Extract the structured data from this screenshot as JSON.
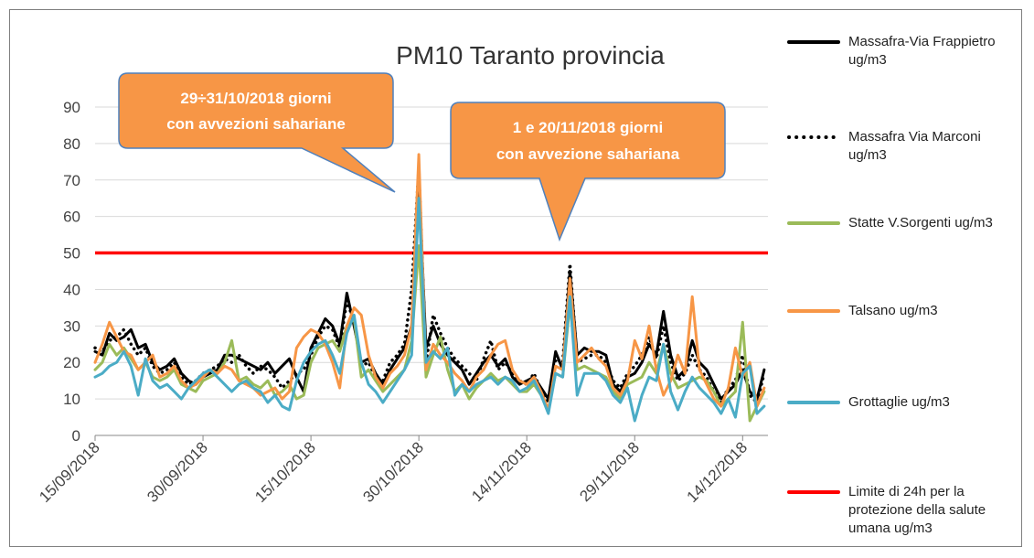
{
  "chart_data": {
    "type": "line",
    "title": "PM10 Taranto provincia",
    "categories": [
      "15/09/2018",
      "16/09/2018",
      "17/09/2018",
      "18/09/2018",
      "19/09/2018",
      "20/09/2018",
      "21/09/2018",
      "22/09/2018",
      "23/09/2018",
      "24/09/2018",
      "25/09/2018",
      "26/09/2018",
      "27/09/2018",
      "28/09/2018",
      "29/09/2018",
      "30/09/2018",
      "01/10/2018",
      "02/10/2018",
      "03/10/2018",
      "04/10/2018",
      "05/10/2018",
      "06/10/2018",
      "07/10/2018",
      "08/10/2018",
      "09/10/2018",
      "10/10/2018",
      "11/10/2018",
      "12/10/2018",
      "13/10/2018",
      "14/10/2018",
      "15/10/2018",
      "16/10/2018",
      "17/10/2018",
      "18/10/2018",
      "19/10/2018",
      "20/10/2018",
      "21/10/2018",
      "22/10/2018",
      "23/10/2018",
      "24/10/2018",
      "25/10/2018",
      "26/10/2018",
      "27/10/2018",
      "28/10/2018",
      "29/10/2018",
      "30/10/2018",
      "31/10/2018",
      "01/11/2018",
      "02/11/2018",
      "03/11/2018",
      "04/11/2018",
      "05/11/2018",
      "06/11/2018",
      "07/11/2018",
      "08/11/2018",
      "09/11/2018",
      "10/11/2018",
      "11/11/2018",
      "12/11/2018",
      "13/11/2018",
      "14/11/2018",
      "15/11/2018",
      "16/11/2018",
      "17/11/2018",
      "18/11/2018",
      "19/11/2018",
      "20/11/2018",
      "21/11/2018",
      "22/11/2018",
      "23/11/2018",
      "24/11/2018",
      "25/11/2018",
      "26/11/2018",
      "27/11/2018",
      "28/11/2018",
      "29/11/2018",
      "30/11/2018",
      "01/12/2018",
      "02/12/2018",
      "03/12/2018",
      "04/12/2018",
      "05/12/2018",
      "06/12/2018",
      "07/12/2018",
      "08/12/2018",
      "09/12/2018",
      "10/12/2018",
      "11/12/2018",
      "12/12/2018",
      "13/12/2018",
      "14/12/2018",
      "15/12/2018",
      "16/12/2018",
      "17/12/2018"
    ],
    "xticks": [
      "15/09/2018",
      "30/09/2018",
      "15/10/2018",
      "30/10/2018",
      "14/11/2018",
      "29/11/2018",
      "14/12/2018"
    ],
    "series": [
      {
        "name": "Massafra-Via Frappietro ug/m3",
        "color": "#000000",
        "style": "solid",
        "values": [
          23,
          22,
          28,
          26,
          27,
          29,
          24,
          25,
          20,
          18,
          19,
          21,
          17,
          15,
          14,
          16,
          17,
          18,
          22,
          22,
          21,
          20,
          19,
          18,
          20,
          17,
          19,
          21,
          16,
          12,
          24,
          28,
          32,
          30,
          25,
          39,
          30,
          20,
          21,
          17,
          14,
          18,
          21,
          24,
          30,
          70,
          24,
          30,
          25,
          22,
          20,
          18,
          14,
          17,
          20,
          22,
          19,
          21,
          16,
          14,
          15,
          16,
          13,
          10,
          23,
          18,
          45,
          22,
          24,
          23,
          23,
          22,
          14,
          12,
          16,
          17,
          20,
          25,
          22,
          34,
          22,
          16,
          18,
          26,
          20,
          18,
          14,
          10,
          12,
          14,
          18,
          12,
          10,
          18
        ]
      },
      {
        "name": "Massafra Via Marconi ug/m3",
        "color": "#000000",
        "style": "dotted",
        "values": [
          24,
          23,
          26,
          27,
          29,
          25,
          22,
          24,
          19,
          17,
          18,
          20,
          16,
          14,
          15,
          17,
          18,
          19,
          21,
          20,
          22,
          19,
          17,
          19,
          18,
          16,
          13,
          15,
          17,
          18,
          22,
          27,
          30,
          29,
          24,
          37,
          31,
          19,
          20,
          16,
          15,
          20,
          22,
          25,
          40,
          73,
          20,
          33,
          28,
          24,
          21,
          19,
          17,
          15,
          21,
          26,
          18,
          20,
          17,
          15,
          14,
          17,
          12,
          9,
          21,
          20,
          47,
          20,
          21,
          22,
          22,
          20,
          15,
          13,
          17,
          19,
          22,
          27,
          21,
          30,
          20,
          15,
          17,
          22,
          18,
          16,
          12,
          9,
          13,
          15,
          22,
          11,
          9,
          17
        ]
      },
      {
        "name": "Statte V.Sorgenti ug/m3",
        "color": "#9bbb59",
        "style": "solid",
        "values": [
          18,
          20,
          25,
          22,
          24,
          21,
          18,
          20,
          16,
          15,
          16,
          18,
          14,
          13,
          12,
          15,
          16,
          17,
          20,
          26,
          15,
          16,
          14,
          13,
          15,
          11,
          12,
          14,
          10,
          11,
          20,
          24,
          25,
          26,
          23,
          30,
          32,
          16,
          18,
          15,
          12,
          14,
          16,
          18,
          26,
          52,
          16,
          22,
          27,
          18,
          12,
          14,
          10,
          13,
          15,
          17,
          15,
          16,
          14,
          12,
          12,
          14,
          11,
          7,
          17,
          16,
          36,
          18,
          19,
          18,
          17,
          16,
          12,
          10,
          14,
          15,
          16,
          20,
          17,
          25,
          17,
          13,
          14,
          15,
          16,
          15,
          12,
          8,
          10,
          12,
          31,
          4,
          8,
          12
        ]
      },
      {
        "name": "Talsano ug/m3",
        "color": "#f79646",
        "style": "solid",
        "values": [
          20,
          25,
          31,
          27,
          23,
          22,
          18,
          20,
          22,
          16,
          17,
          19,
          15,
          13,
          14,
          16,
          18,
          17,
          19,
          18,
          15,
          14,
          13,
          11,
          12,
          13,
          10,
          12,
          24,
          27,
          29,
          28,
          25,
          20,
          13,
          30,
          35,
          33,
          22,
          16,
          13,
          17,
          19,
          22,
          30,
          77,
          18,
          25,
          22,
          20,
          17,
          15,
          12,
          16,
          18,
          22,
          25,
          26,
          18,
          15,
          14,
          16,
          12,
          7,
          19,
          18,
          43,
          20,
          22,
          24,
          21,
          19,
          13,
          11,
          15,
          26,
          21,
          30,
          18,
          11,
          15,
          22,
          17,
          38,
          18,
          14,
          10,
          8,
          13,
          24,
          16,
          20,
          8,
          13
        ]
      },
      {
        "name": "Grottaglie ug/m3",
        "color": "#4bacc6",
        "style": "solid",
        "values": [
          16,
          17,
          19,
          20,
          23,
          19,
          11,
          21,
          15,
          13,
          14,
          12,
          10,
          13,
          15,
          17,
          18,
          16,
          14,
          12,
          14,
          15,
          13,
          12,
          9,
          11,
          8,
          7,
          15,
          20,
          23,
          25,
          26,
          22,
          17,
          28,
          33,
          20,
          14,
          12,
          9,
          12,
          15,
          18,
          22,
          65,
          20,
          23,
          21,
          24,
          11,
          14,
          12,
          14,
          15,
          16,
          14,
          16,
          15,
          12,
          13,
          15,
          11,
          6,
          17,
          16,
          38,
          11,
          17,
          17,
          17,
          15,
          11,
          9,
          13,
          4,
          11,
          16,
          15,
          25,
          12,
          7,
          12,
          16,
          13,
          11,
          9,
          6,
          10,
          5,
          17,
          19,
          6,
          8
        ]
      }
    ],
    "limit": {
      "name": "Limite di 24h per la protezione della salute umana ug/m3",
      "value": 50,
      "color": "#ff0000"
    },
    "ylim": [
      0,
      90
    ],
    "yticks": [
      0,
      10,
      20,
      30,
      40,
      50,
      60,
      70,
      80,
      90
    ],
    "grid": true,
    "annotations": [
      {
        "lines": [
          "29÷31/10/2018 giorni",
          "con avvezioni sahariane"
        ]
      },
      {
        "lines": [
          "1 e 20/11/2018 giorni",
          "con avvezione sahariana"
        ]
      }
    ]
  }
}
